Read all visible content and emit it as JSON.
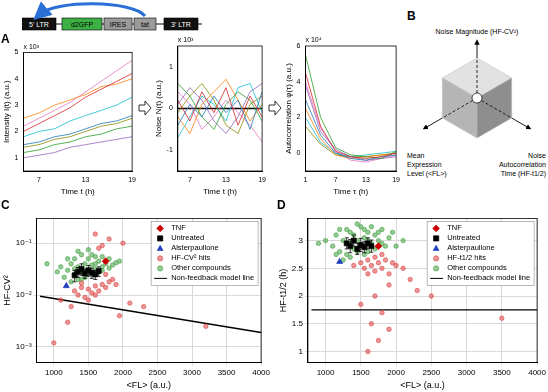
{
  "chart_data": [
    {
      "type": "line",
      "title": "A",
      "x_label": "Time t (h)",
      "y_label": "Intensity I(t) (a.u.)",
      "annotations": [
        "x 10³"
      ],
      "grid": false,
      "x": [
        5,
        7,
        9,
        11,
        13,
        15,
        17,
        19
      ],
      "xlim": [
        5,
        19
      ],
      "xticks": [
        7,
        13,
        19
      ],
      "ylim": [
        0.5,
        5
      ],
      "yticks": [
        1,
        2,
        3,
        4,
        5
      ],
      "series": [
        {
          "color": "#d62728",
          "values": [
            2.0,
            2.3,
            2.6,
            2.9,
            3.3,
            3.6,
            3.9,
            4.2
          ]
        },
        {
          "color": "#1f77b4",
          "values": [
            1.5,
            1.6,
            1.8,
            1.9,
            2.1,
            2.3,
            2.4,
            2.6
          ]
        },
        {
          "color": "#2ca02c",
          "values": [
            1.2,
            1.3,
            1.5,
            1.6,
            1.8,
            1.9,
            2.1,
            2.2
          ]
        },
        {
          "color": "#ff7f0e",
          "values": [
            2.5,
            2.7,
            3.0,
            3.2,
            3.4,
            3.7,
            3.8,
            4.0
          ]
        },
        {
          "color": "#9467bd",
          "values": [
            1.0,
            1.1,
            1.2,
            1.4,
            1.5,
            1.6,
            1.7,
            1.8
          ]
        },
        {
          "color": "#17becf",
          "values": [
            1.8,
            2.0,
            2.1,
            2.4,
            2.6,
            2.8,
            3.0,
            3.3
          ]
        },
        {
          "color": "#e377c2",
          "values": [
            2.2,
            2.5,
            2.8,
            3.1,
            3.5,
            3.9,
            4.3,
            4.7
          ]
        },
        {
          "color": "#8c8c00",
          "values": [
            1.4,
            1.5,
            1.7,
            1.8,
            2.0,
            2.2,
            2.3,
            2.5
          ]
        }
      ]
    },
    {
      "type": "line",
      "x_label": "Time t (h)",
      "y_label": "Noise N(t) (a.u.)",
      "annotations": [
        "x 10³"
      ],
      "grid": false,
      "x": [
        5,
        7,
        9,
        11,
        13,
        15,
        17,
        19
      ],
      "xlim": [
        5,
        19
      ],
      "xticks": [
        7,
        13,
        19
      ],
      "ylim": [
        -1.5,
        1.5
      ],
      "yticks": [
        -1,
        0,
        1
      ],
      "series": [
        {
          "color": "#d62728",
          "values": [
            0.2,
            -0.3,
            0.4,
            -0.1,
            0.5,
            -0.4,
            0.3,
            -0.2
          ]
        },
        {
          "color": "#1f77b4",
          "values": [
            -0.4,
            0.1,
            -0.2,
            0.3,
            -0.1,
            0.2,
            -0.5,
            0.4
          ]
        },
        {
          "color": "#2ca02c",
          "values": [
            0.6,
            0.3,
            -0.2,
            -0.5,
            0.1,
            0.4,
            0.2,
            -0.3
          ]
        },
        {
          "color": "#ff7f0e",
          "values": [
            -0.2,
            -0.6,
            0.1,
            0.4,
            0.7,
            0.2,
            -0.3,
            0.1
          ]
        },
        {
          "color": "#9467bd",
          "values": [
            0.1,
            0.5,
            0.2,
            -0.3,
            -0.6,
            -0.2,
            0.4,
            0.6
          ]
        },
        {
          "color": "#17becf",
          "values": [
            -0.7,
            -0.2,
            0.3,
            0.1,
            -0.3,
            0.5,
            0.6,
            -0.1
          ]
        },
        {
          "color": "#e377c2",
          "values": [
            0.4,
            0.1,
            -0.5,
            -0.2,
            0.2,
            -0.1,
            -0.4,
            -0.8
          ]
        },
        {
          "color": "#8c8c00",
          "values": [
            -0.1,
            0.3,
            0.6,
            0.2,
            -0.4,
            -0.6,
            0.1,
            0.3
          ]
        },
        {
          "color": "#000000",
          "values": [
            0,
            0,
            0,
            0,
            0,
            0,
            0,
            0
          ]
        }
      ]
    },
    {
      "type": "line",
      "x_label": "Time τ (h)",
      "y_label": "Autocorrelation φ(τ) (a.u.)",
      "annotations": [
        "x 10⁴"
      ],
      "grid": false,
      "x": [
        1,
        4,
        7,
        10,
        13,
        16,
        19
      ],
      "xlim": [
        1,
        19
      ],
      "xticks": [
        1,
        7,
        13,
        19
      ],
      "ylim": [
        -1,
        6
      ],
      "yticks": [
        0,
        2,
        4,
        6
      ],
      "series": [
        {
          "color": "#d62728",
          "values": [
            4.5,
            1.5,
            0.1,
            -0.2,
            -0.3,
            -0.2,
            0
          ]
        },
        {
          "color": "#1f77b4",
          "values": [
            3.0,
            1.0,
            0.0,
            -0.3,
            -0.4,
            -0.2,
            -0.1
          ]
        },
        {
          "color": "#2ca02c",
          "values": [
            5.5,
            2.0,
            0.3,
            -0.1,
            -0.2,
            -0.3,
            0.1
          ]
        },
        {
          "color": "#ff7f0e",
          "values": [
            2.5,
            0.8,
            -0.1,
            -0.3,
            -0.2,
            -0.1,
            0
          ]
        },
        {
          "color": "#9467bd",
          "values": [
            3.8,
            1.2,
            0.2,
            -0.2,
            -0.4,
            -0.3,
            -0.2
          ]
        },
        {
          "color": "#17becf",
          "values": [
            2.0,
            0.6,
            0.0,
            -0.2,
            -0.1,
            0,
            0.1
          ]
        },
        {
          "color": "#e377c2",
          "values": [
            4.0,
            1.4,
            0.1,
            -0.4,
            -0.5,
            -0.3,
            -0.1
          ]
        },
        {
          "color": "#8c8c00",
          "values": [
            1.5,
            0.5,
            -0.1,
            -0.2,
            -0.2,
            -0.1,
            0
          ]
        }
      ]
    },
    {
      "type": "scatter",
      "title": "C",
      "x_label": "<FL> (a.u.)",
      "y_label": "HF-CV²",
      "log": "y",
      "grid": true,
      "legend": "top right",
      "xlim": [
        750,
        4000
      ],
      "xticks": [
        1000,
        1500,
        2000,
        2500,
        3000,
        3500,
        4000
      ],
      "ylim": [
        0.0005,
        0.3
      ],
      "yticks": [
        {
          "value": 0.001,
          "label": "10⁻³"
        },
        {
          "value": 0.01,
          "label": "10⁻²"
        },
        {
          "value": 0.1,
          "label": "10⁻¹"
        }
      ],
      "series": [
        {
          "name": "TNF",
          "color": "#cc0000",
          "marker": "diamond",
          "x": [
            1750
          ],
          "values": [
            0.045
          ]
        },
        {
          "name": "Untreated",
          "color": "#000000",
          "marker": "square",
          "x": [
            1300,
            1350,
            1400,
            1450,
            1500,
            1550,
            1600,
            1650
          ],
          "values": [
            0.024,
            0.028,
            0.032,
            0.026,
            0.03,
            0.027,
            0.025,
            0.029
          ],
          "error": [
            0.006,
            0.006,
            0.008,
            0.005,
            0.007,
            0.006,
            0.005,
            0.006
          ]
        },
        {
          "name": "Alsterpaullone",
          "color": "#1f3fbf",
          "marker": "triangle",
          "x": [
            1180
          ],
          "values": [
            0.015
          ]
        },
        {
          "name": "HF-CV² hits",
          "color": "#e05050",
          "marker": "circle",
          "x": [
            1300,
            1350,
            1400,
            1450,
            1500,
            1550,
            1600,
            1650,
            1700,
            1750,
            1800,
            1500,
            1400,
            1600,
            1850,
            1900,
            1700,
            1800,
            1600,
            1250,
            1950,
            2100,
            2300,
            1200,
            1000,
            3200,
            2000,
            1100,
            1750,
            1650
          ],
          "values": [
            0.012,
            0.01,
            0.014,
            0.009,
            0.013,
            0.011,
            0.015,
            0.012,
            0.016,
            0.014,
            0.018,
            0.008,
            0.017,
            0.01,
            0.02,
            0.016,
            0.09,
            0.12,
            0.15,
            0.006,
            0.004,
            0.007,
            0.006,
            0.003,
            0.0012,
            0.0025,
            0.1,
            0.008,
            0.025,
            0.08
          ]
        },
        {
          "name": "Other compounds",
          "color": "#4fa84f",
          "marker": "circle",
          "x": [
            1150,
            1200,
            1250,
            1250,
            1300,
            1300,
            1350,
            1350,
            1400,
            1400,
            1450,
            1450,
            1500,
            1500,
            1550,
            1550,
            1600,
            1600,
            1650,
            1650,
            1700,
            1700,
            1750,
            1800,
            1800,
            1850,
            1900,
            1100,
            1050,
            1200,
            1350,
            1500,
            1600,
            1450,
            1300,
            1550,
            1700,
            1950,
            900,
            1400
          ],
          "values": [
            0.022,
            0.03,
            0.018,
            0.04,
            0.025,
            0.05,
            0.02,
            0.035,
            0.028,
            0.06,
            0.022,
            0.04,
            0.03,
            0.05,
            0.025,
            0.038,
            0.032,
            0.055,
            0.028,
            0.045,
            0.035,
            0.03,
            0.04,
            0.033,
            0.05,
            0.038,
            0.042,
            0.035,
            0.028,
            0.05,
            0.07,
            0.075,
            0.04,
            0.03,
            0.032,
            0.06,
            0.055,
            0.045,
            0.04,
            0.02
          ]
        },
        {
          "name": "Non-feedback model line",
          "color": "#000000",
          "type": "line",
          "line_style": "solid",
          "x": [
            800,
            4000
          ],
          "values": [
            0.0095,
            0.0019
          ]
        }
      ]
    },
    {
      "type": "scatter",
      "title": "D",
      "x_label": "<FL> (a.u.)",
      "y_label": "HF-t1/2 (h)",
      "grid": true,
      "legend": "top right",
      "xlim": [
        750,
        4000
      ],
      "xticks": [
        1000,
        1500,
        2000,
        2500,
        3000,
        3500,
        4000
      ],
      "ylim": [
        0.8,
        3.4
      ],
      "yticks": [
        1,
        1.5,
        2,
        2.5,
        3
      ],
      "series": [
        {
          "name": "TNF",
          "color": "#cc0000",
          "marker": "diamond",
          "x": [
            1750
          ],
          "values": [
            2.9
          ]
        },
        {
          "name": "Untreated",
          "color": "#000000",
          "marker": "square",
          "x": [
            1300,
            1350,
            1400,
            1450,
            1500,
            1550,
            1600,
            1650
          ],
          "values": [
            2.95,
            2.9,
            3.0,
            2.85,
            2.92,
            2.88,
            2.95,
            2.9
          ],
          "error": [
            0.1,
            0.12,
            0.1,
            0.1,
            0.12,
            0.1,
            0.1,
            0.11
          ]
        },
        {
          "name": "Alsterpaullone",
          "color": "#1f3fbf",
          "marker": "triangle",
          "x": [
            1200
          ],
          "values": [
            2.62
          ]
        },
        {
          "name": "HF-t1/2 hits",
          "color": "#e05050",
          "marker": "circle",
          "x": [
            1500,
            1550,
            1600,
            1650,
            1700,
            1750,
            1800,
            1850,
            1900,
            1950,
            2000,
            1700,
            1600,
            1800,
            2100,
            2200,
            1400,
            1900,
            1700,
            1500,
            1800,
            1650,
            1750,
            1600,
            1900,
            2300,
            3500,
            2500
          ],
          "values": [
            2.6,
            2.5,
            2.65,
            2.55,
            2.7,
            2.6,
            2.5,
            2.65,
            2.4,
            2.6,
            2.55,
            2.45,
            2.4,
            2.75,
            2.5,
            2.3,
            2.55,
            2.2,
            2.0,
            1.85,
            1.7,
            1.5,
            1.2,
            1.0,
            1.4,
            2.1,
            1.6,
            2.0
          ]
        },
        {
          "name": "Other compounds",
          "color": "#4fa84f",
          "marker": "circle",
          "x": [
            1100,
            1150,
            1200,
            1250,
            1300,
            1300,
            1350,
            1400,
            1400,
            1450,
            1500,
            1500,
            1550,
            1600,
            1600,
            1650,
            1700,
            1750,
            1800,
            1850,
            1900,
            1200,
            1350,
            1450,
            1550,
            1700,
            1000,
            900,
            1950,
            1250,
            1650,
            1450,
            1350,
            1550,
            1800,
            2000,
            2100,
            1150,
            1600,
            1750
          ],
          "values": [
            2.9,
            3.1,
            2.8,
            3.0,
            3.2,
            2.75,
            2.95,
            3.1,
            2.85,
            3.0,
            3.25,
            2.9,
            3.05,
            2.8,
            3.15,
            2.95,
            3.1,
            3.0,
            3.2,
            2.9,
            3.05,
            3.2,
            2.7,
            3.3,
            2.75,
            2.85,
            3.0,
            2.95,
            3.15,
            2.65,
            3.25,
            2.8,
            3.15,
            3.2,
            2.95,
            2.9,
            3.0,
            2.75,
            3.0,
            3.15
          ]
        },
        {
          "name": "Non-feedback model line",
          "color": "#000000",
          "type": "line",
          "line_style": "solid",
          "x": [
            800,
            4000
          ],
          "values": [
            1.75,
            1.75
          ]
        }
      ]
    }
  ],
  "construct": [
    "5' LTR",
    "d2GFP",
    "IRES",
    "tat",
    "3' LTR"
  ],
  "diagram": {
    "title": "B",
    "top": [
      "Noise Magnitude (HF-CV²)"
    ],
    "left": [
      "Mean",
      "Expression",
      "Level (<FL>)"
    ],
    "right": [
      "Noise",
      "Autocorrelation",
      "Time (HF-t1/2)"
    ]
  }
}
